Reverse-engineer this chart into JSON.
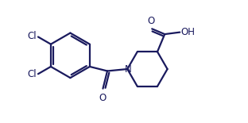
{
  "background_color": "#ffffff",
  "line_color": "#1a1a5e",
  "line_width": 1.6,
  "text_color": "#1a1a5e",
  "font_size": 8.5,
  "figsize": [
    3.12,
    1.55
  ],
  "dpi": 100,
  "xlim": [
    -4.8,
    4.8
  ],
  "ylim": [
    -2.2,
    2.8
  ]
}
